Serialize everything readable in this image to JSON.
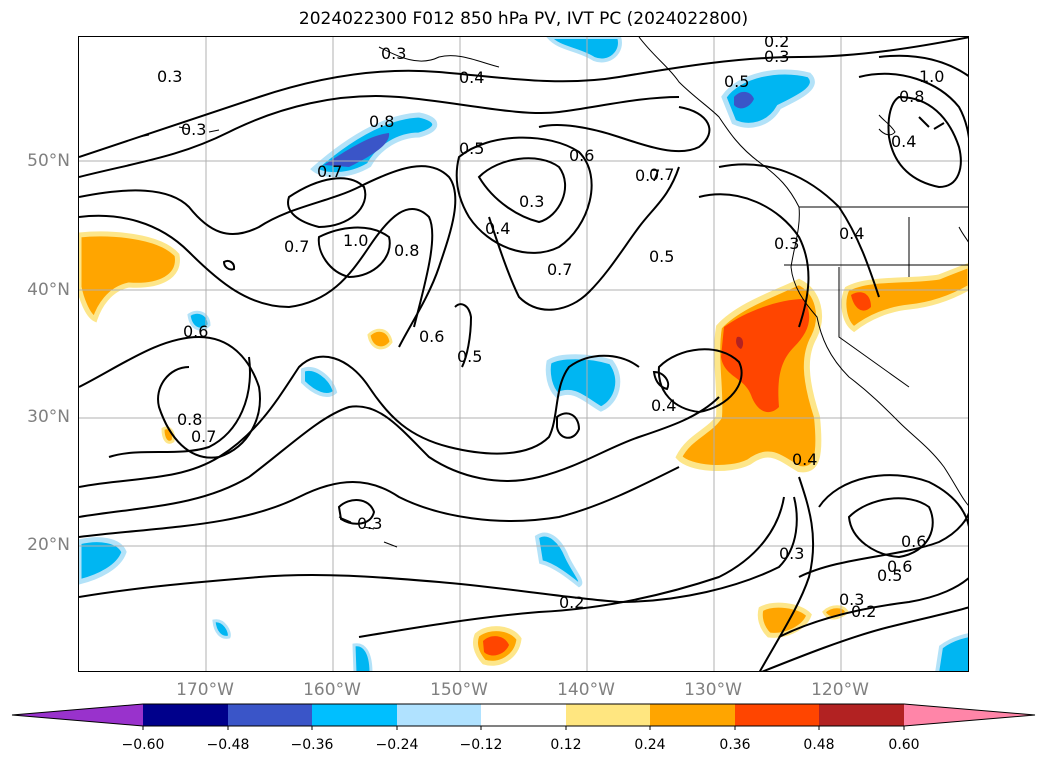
{
  "title": "2024022300 F012 850 hPa PV, IVT PC (2024022800)",
  "map": {
    "lat_labels": [
      "50°N",
      "40°N",
      "30°N",
      "20°N"
    ],
    "lon_labels": [
      "170°W",
      "160°W",
      "150°W",
      "140°W",
      "130°W",
      "120°W"
    ],
    "contour_labels": [
      "0.3",
      "0.3",
      "0.2",
      "0.3",
      "0.3",
      "0.4",
      "0.5",
      "1.0",
      "0.8",
      "0.6",
      "0.8",
      "0.4",
      "0.7",
      "0.5",
      "0.6",
      "0.7",
      "0.3",
      "0.4",
      "0.4",
      "1.0",
      "0.8",
      "0.7",
      "0.7",
      "0.5",
      "0.3",
      "0.6",
      "0.8",
      "0.7",
      "0.5",
      "0.6",
      "0.4",
      "0.4",
      "0.3",
      "0.3",
      "0.2",
      "0.3",
      "0.2",
      "0.5",
      "0.6",
      "0.7"
    ],
    "colors": {
      "negative_dark": "#3a55c8",
      "negative_mid": "#00b6f2",
      "negative_light": "#b3e2f8",
      "positive_light": "#fde68a",
      "positive_mid": "#ffa500",
      "positive_strong": "#ff4500",
      "positive_dark": "#b22222"
    }
  },
  "colorbar": {
    "ticks": [
      "−0.60",
      "−0.48",
      "−0.36",
      "−0.24",
      "−0.12",
      "0.12",
      "0.24",
      "0.36",
      "0.48",
      "0.60"
    ],
    "colors": [
      "#9932cc",
      "#00008b",
      "#3a55c8",
      "#00bfff",
      "#b0e2ff",
      "#ffffff",
      "#ffe680",
      "#ffa500",
      "#ff4500",
      "#b22222",
      "#ff85a8"
    ]
  }
}
